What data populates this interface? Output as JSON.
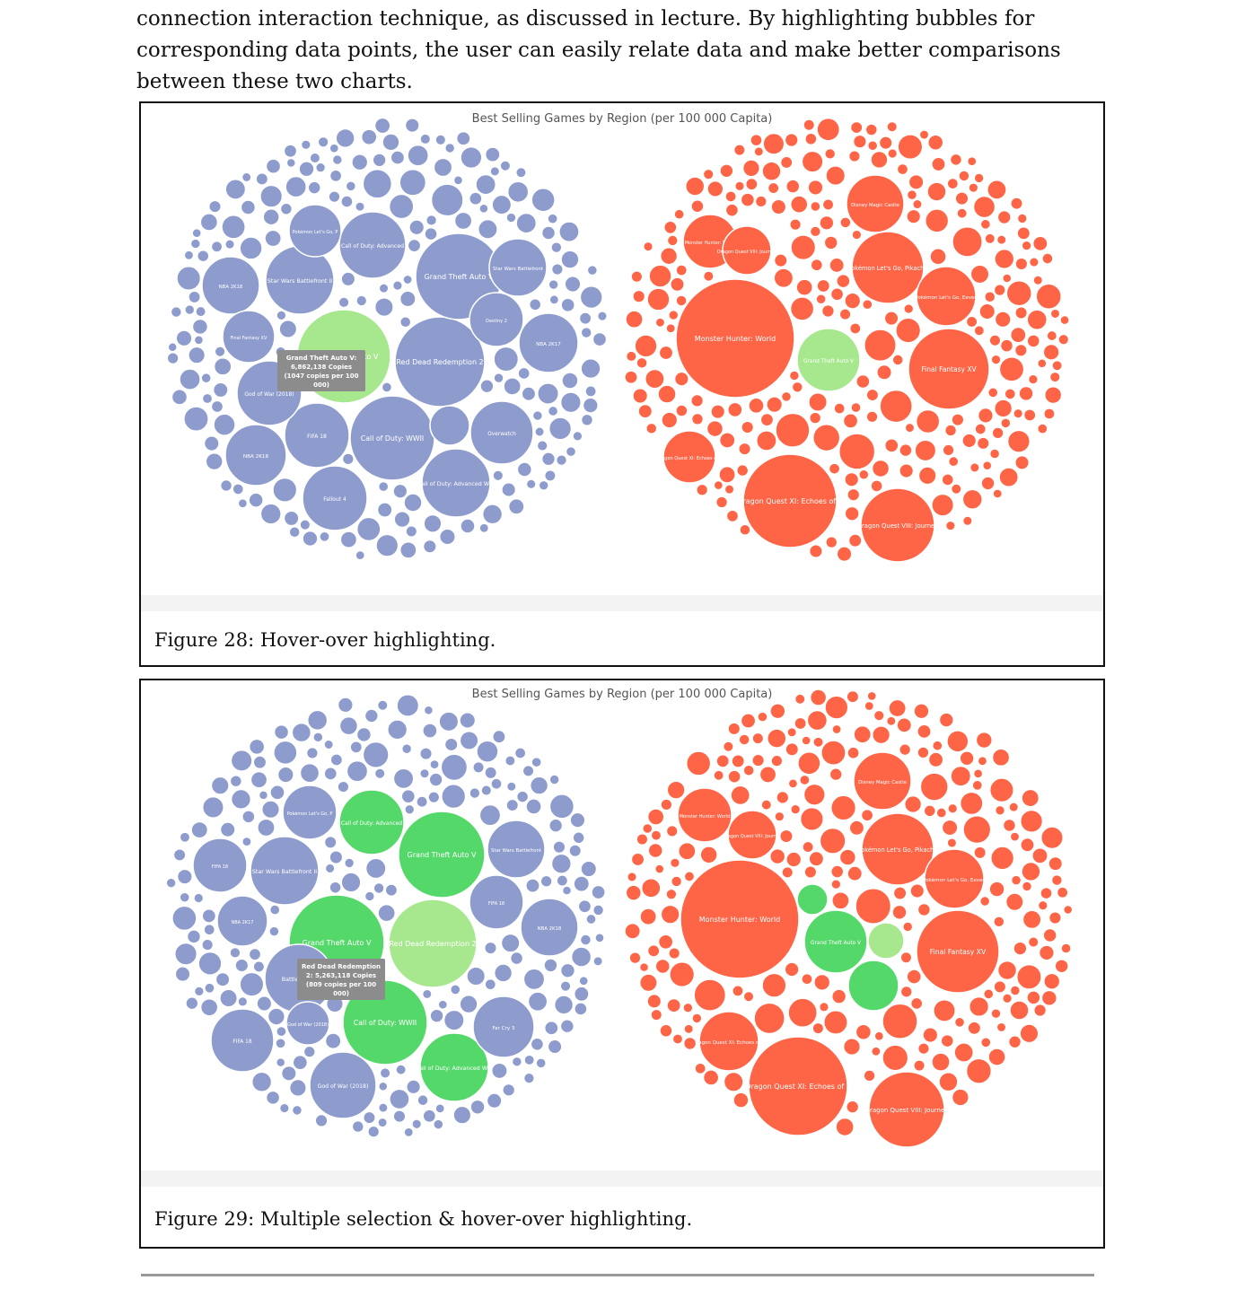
{
  "paragraph": {
    "text": "connection interaction technique, as discussed in lecture. By highlighting bubbles for corresponding data points, the user can easily relate data and make better comparisons between these two charts."
  },
  "colors": {
    "blue": "#8e9ccd",
    "red": "#fd6546",
    "light_green": "#a7e88e",
    "green": "#55d86a",
    "tooltip": "#8c8c8c"
  },
  "figures": [
    {
      "chart_title": "Best Selling Games by Region (per 100 000 Capita)",
      "caption": "Figure 28: Hover-over highlighting.",
      "tooltip_lines": [
        "Grand Theft Auto V:",
        "6,862,138 Copies",
        "(1047 copies per 100",
        "000)"
      ],
      "chart_data": {
        "type": "bubble",
        "title": "Best Selling Games by Region (per 100 000 Capita)",
        "highlighted": [
          "Grand Theft Auto V"
        ],
        "left_bubbles": [
          "Grand Theft Auto V",
          "Red Dead Redemption 2",
          "Call of Duty: WWII",
          "Call of Duty: Advanced War",
          "Call of Duty: Advanced",
          "Star Wars Battlefront",
          "Star Wars Battlefront II",
          "Pokémon Let's Go, P",
          "Battlefield 1",
          "FIFA 18",
          "NBA 2K18",
          "NBA 2K17",
          "Final Fantasy XV",
          "God of War (2018)",
          "Far Cry 5",
          "Fallout 4",
          "Overwatch",
          "Destiny 2",
          "Uncharted 4"
        ],
        "right_bubbles": [
          "Monster Hunter: World",
          "Dragon Quest XI: Echoes of an Elusive Age",
          "Dragon Quest VIII: Journey",
          "Final Fantasy XV",
          "Pokémon Let's Go, Pikachu",
          "Pokémon Let's Go, Eevee",
          "Disney Magic Castle",
          "Grand Theft Auto V"
        ]
      }
    },
    {
      "chart_title": "Best Selling Games by Region (per 100 000 Capita)",
      "caption": "Figure 29: Multiple selection & hover-over highlighting.",
      "tooltip_lines": [
        "Red Dead Redemption",
        "2: 5,263,118 Copies",
        "(809 copies per 100",
        "000)"
      ],
      "chart_data": {
        "type": "bubble",
        "title": "Best Selling Games by Region (per 100 000 Capita)",
        "selected": [
          "Grand Theft Auto V",
          "Call of Duty: WWII",
          "Call of Duty: Advanced War",
          "Call of Duty: Advanced"
        ],
        "hovered": "Red Dead Redemption 2",
        "left_bubbles": [
          "Grand Theft Auto V",
          "Red Dead Redemption 2",
          "Call of Duty: WWII",
          "Call of Duty: Advanced War",
          "Call of Duty: Advanced",
          "Star Wars Battlefront",
          "Star Wars Battlefront II",
          "Pokémon Let's Go, P",
          "God of War (2018)",
          "NBA 2K18",
          "NBA 2K17",
          "Final Fantasy XV",
          "Far Cry 5",
          "Fallout 4",
          "Overwatch"
        ],
        "right_bubbles": [
          "Monster Hunter: World",
          "Dragon Quest XI: Echoes of an Elusive Age",
          "Dragon Quest VIII: Journey",
          "Final Fantasy XV",
          "Pokémon Let's Go, Pikachu",
          "Pokémon Let's Go, Eevee",
          "Disney Magic Castle",
          "Grand Theft Auto V",
          "Call of Duty: WWII",
          "Call of Duty: Advanced War",
          "Red Dead Redemption 2"
        ]
      }
    }
  ]
}
